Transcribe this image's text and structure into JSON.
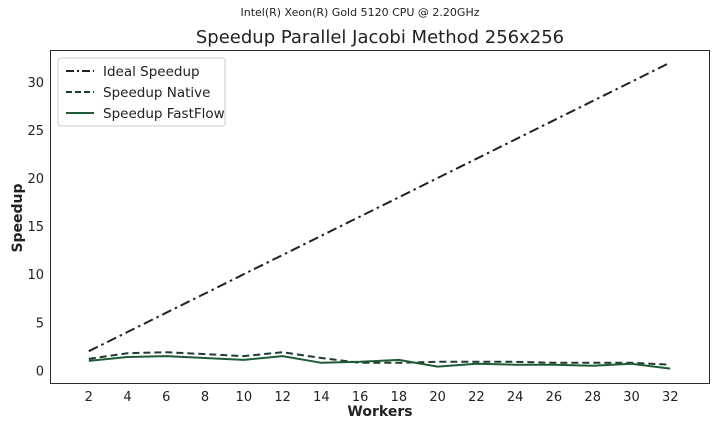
{
  "chart_data": {
    "type": "line",
    "suptitle": "Intel(R) Xeon(R) Gold 5120 CPU @ 2.20GHz",
    "title": "Speedup Parallel Jacobi Method 256x256",
    "xlabel": "Workers",
    "ylabel": "Speedup",
    "x": [
      2,
      4,
      6,
      8,
      10,
      12,
      14,
      16,
      18,
      20,
      22,
      24,
      26,
      28,
      30,
      32
    ],
    "xlim": [
      0,
      34
    ],
    "ylim": [
      -1.3,
      33.3
    ],
    "xticks": [
      2,
      4,
      6,
      8,
      10,
      12,
      14,
      16,
      18,
      20,
      22,
      24,
      26,
      28,
      30,
      32
    ],
    "yticks": [
      0,
      5,
      10,
      15,
      20,
      25,
      30
    ],
    "grid": false,
    "legend_position": "top-left",
    "series": [
      {
        "name": "Ideal Speedup",
        "color": "#222222",
        "linestyle": "dashdot",
        "values": [
          2,
          4,
          6,
          8,
          10,
          12,
          14,
          16,
          18,
          20,
          22,
          24,
          26,
          28,
          30,
          32
        ]
      },
      {
        "name": "Speedup Native",
        "color": "#1f3d2b",
        "linestyle": "dashed",
        "values": [
          1.2,
          1.8,
          1.9,
          1.7,
          1.5,
          1.9,
          1.3,
          0.8,
          0.8,
          0.9,
          0.9,
          0.9,
          0.8,
          0.8,
          0.8,
          0.6
        ]
      },
      {
        "name": "Speedup FastFlow",
        "color": "#1e5c35",
        "linestyle": "solid",
        "values": [
          1.0,
          1.4,
          1.5,
          1.3,
          1.1,
          1.5,
          0.8,
          0.9,
          1.1,
          0.4,
          0.7,
          0.6,
          0.6,
          0.5,
          0.7,
          0.2
        ]
      }
    ]
  }
}
